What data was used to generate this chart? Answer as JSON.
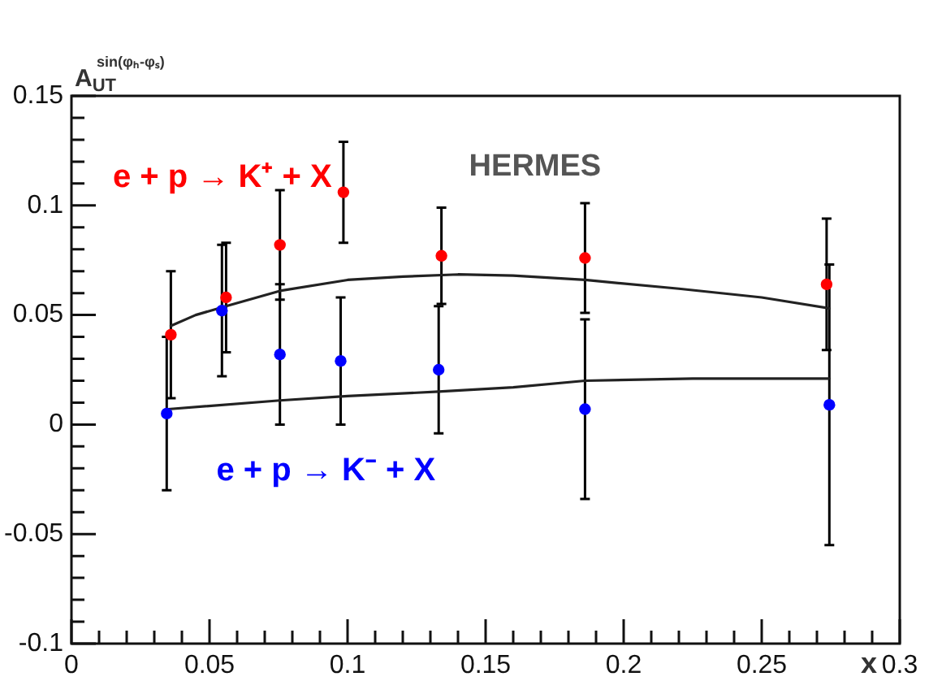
{
  "chart_data": {
    "type": "scatter",
    "ylabel": "A$_{UT}$$^{sin(φₕ-φₛ)}$",
    "xlabel": "x",
    "annotations": [
      "HERMES"
    ],
    "marker": "circle",
    "xlim": [
      0,
      0.3
    ],
    "ylim": [
      -0.1,
      0.15
    ],
    "xticks": [
      0,
      {
        "value": 0.01,
        "label": null
      },
      {
        "value": 0.02,
        "label": null
      },
      {
        "value": 0.03,
        "label": null
      },
      {
        "value": 0.04,
        "label": null
      },
      0.05,
      {
        "value": 0.06,
        "label": null
      },
      {
        "value": 0.07,
        "label": null
      },
      {
        "value": 0.08,
        "label": null
      },
      {
        "value": 0.09,
        "label": null
      },
      0.1,
      {
        "value": 0.11,
        "label": null
      },
      {
        "value": 0.12,
        "label": null
      },
      {
        "value": 0.13,
        "label": null
      },
      {
        "value": 0.14,
        "label": null
      },
      0.15,
      {
        "value": 0.16,
        "label": null
      },
      {
        "value": 0.17,
        "label": null
      },
      {
        "value": 0.18,
        "label": null
      },
      {
        "value": 0.19,
        "label": null
      },
      0.2,
      {
        "value": 0.21,
        "label": null
      },
      {
        "value": 0.22,
        "label": null
      },
      {
        "value": 0.23,
        "label": null
      },
      {
        "value": 0.24,
        "label": null
      },
      0.25,
      {
        "value": 0.26,
        "label": null
      },
      {
        "value": 0.27,
        "label": null
      },
      {
        "value": 0.28,
        "label": null
      },
      {
        "value": 0.29,
        "label": null
      },
      0.3
    ],
    "yticks": [
      -0.1,
      {
        "value": -0.09,
        "label": null
      },
      {
        "value": -0.08,
        "label": null
      },
      {
        "value": -0.07,
        "label": null
      },
      {
        "value": -0.06,
        "label": null
      },
      -0.05,
      {
        "value": -0.04,
        "label": null
      },
      {
        "value": -0.03,
        "label": null
      },
      {
        "value": -0.02,
        "label": null
      },
      {
        "value": -0.01,
        "label": null
      },
      0,
      {
        "value": 0.01,
        "label": null
      },
      {
        "value": 0.02,
        "label": null
      },
      {
        "value": 0.03,
        "label": null
      },
      {
        "value": 0.04,
        "label": null
      },
      0.05,
      {
        "value": 0.06,
        "label": null
      },
      {
        "value": 0.07,
        "label": null
      },
      {
        "value": 0.08,
        "label": null
      },
      {
        "value": 0.09,
        "label": null
      },
      0.1,
      {
        "value": 0.11,
        "label": null
      },
      {
        "value": 0.12,
        "label": null
      },
      {
        "value": 0.13,
        "label": null
      },
      {
        "value": 0.14,
        "label": null
      },
      0.15
    ],
    "series": [
      {
        "name": "e + p → K⁺ + X",
        "color": "#ff0000",
        "x": [
          0.036,
          0.056,
          0.0755,
          0.0985,
          0.134,
          0.186,
          0.2735
        ],
        "values": [
          0.041,
          0.058,
          0.082,
          0.106,
          0.077,
          0.076,
          0.064
        ],
        "errors": [
          0.029,
          0.025,
          0.025,
          0.023,
          0.022,
          0.025,
          0.03
        ]
      },
      {
        "name": "e + p → K⁻ + X",
        "color": "#0000ff",
        "x": [
          0.0345,
          0.0545,
          0.0755,
          0.0975,
          0.133,
          0.186,
          0.2745
        ],
        "values": [
          0.005,
          0.052,
          0.032,
          0.029,
          0.025,
          0.007,
          0.009
        ],
        "errors": [
          0.035,
          0.03,
          0.032,
          0.029,
          0.029,
          0.041,
          0.064
        ]
      },
      {
        "type": "line",
        "marker": "none",
        "color": "#222222",
        "x": [
          0.036,
          0.045,
          0.056,
          0.0755,
          0.1,
          0.12,
          0.14,
          0.16,
          0.186,
          0.22,
          0.25,
          0.2745
        ],
        "values": [
          0.045,
          0.05,
          0.054,
          0.061,
          0.066,
          0.0675,
          0.0685,
          0.068,
          0.066,
          0.062,
          0.058,
          0.053
        ]
      },
      {
        "type": "line",
        "marker": "none",
        "color": "#222222",
        "x": [
          0.035,
          0.0755,
          0.1,
          0.133,
          0.16,
          0.186,
          0.225,
          0.2745
        ],
        "values": [
          0.007,
          0.011,
          0.013,
          0.015,
          0.017,
          0.02,
          0.021,
          0.021
        ]
      }
    ]
  }
}
